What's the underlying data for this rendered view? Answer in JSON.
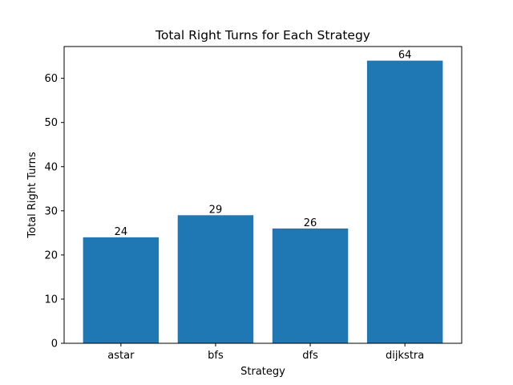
{
  "chart_data": {
    "type": "bar",
    "title": "Total Right Turns for Each Strategy",
    "xlabel": "Strategy",
    "ylabel": "Total Right Turns",
    "categories": [
      "astar",
      "bfs",
      "dfs",
      "dijkstra"
    ],
    "values": [
      24,
      29,
      26,
      64
    ],
    "data_labels": [
      "24",
      "29",
      "26",
      "64"
    ],
    "ylim": [
      0,
      67.2
    ],
    "yticks": [
      0,
      10,
      20,
      30,
      40,
      50,
      60
    ],
    "grid": false,
    "bar_color": "#1f77b4"
  }
}
